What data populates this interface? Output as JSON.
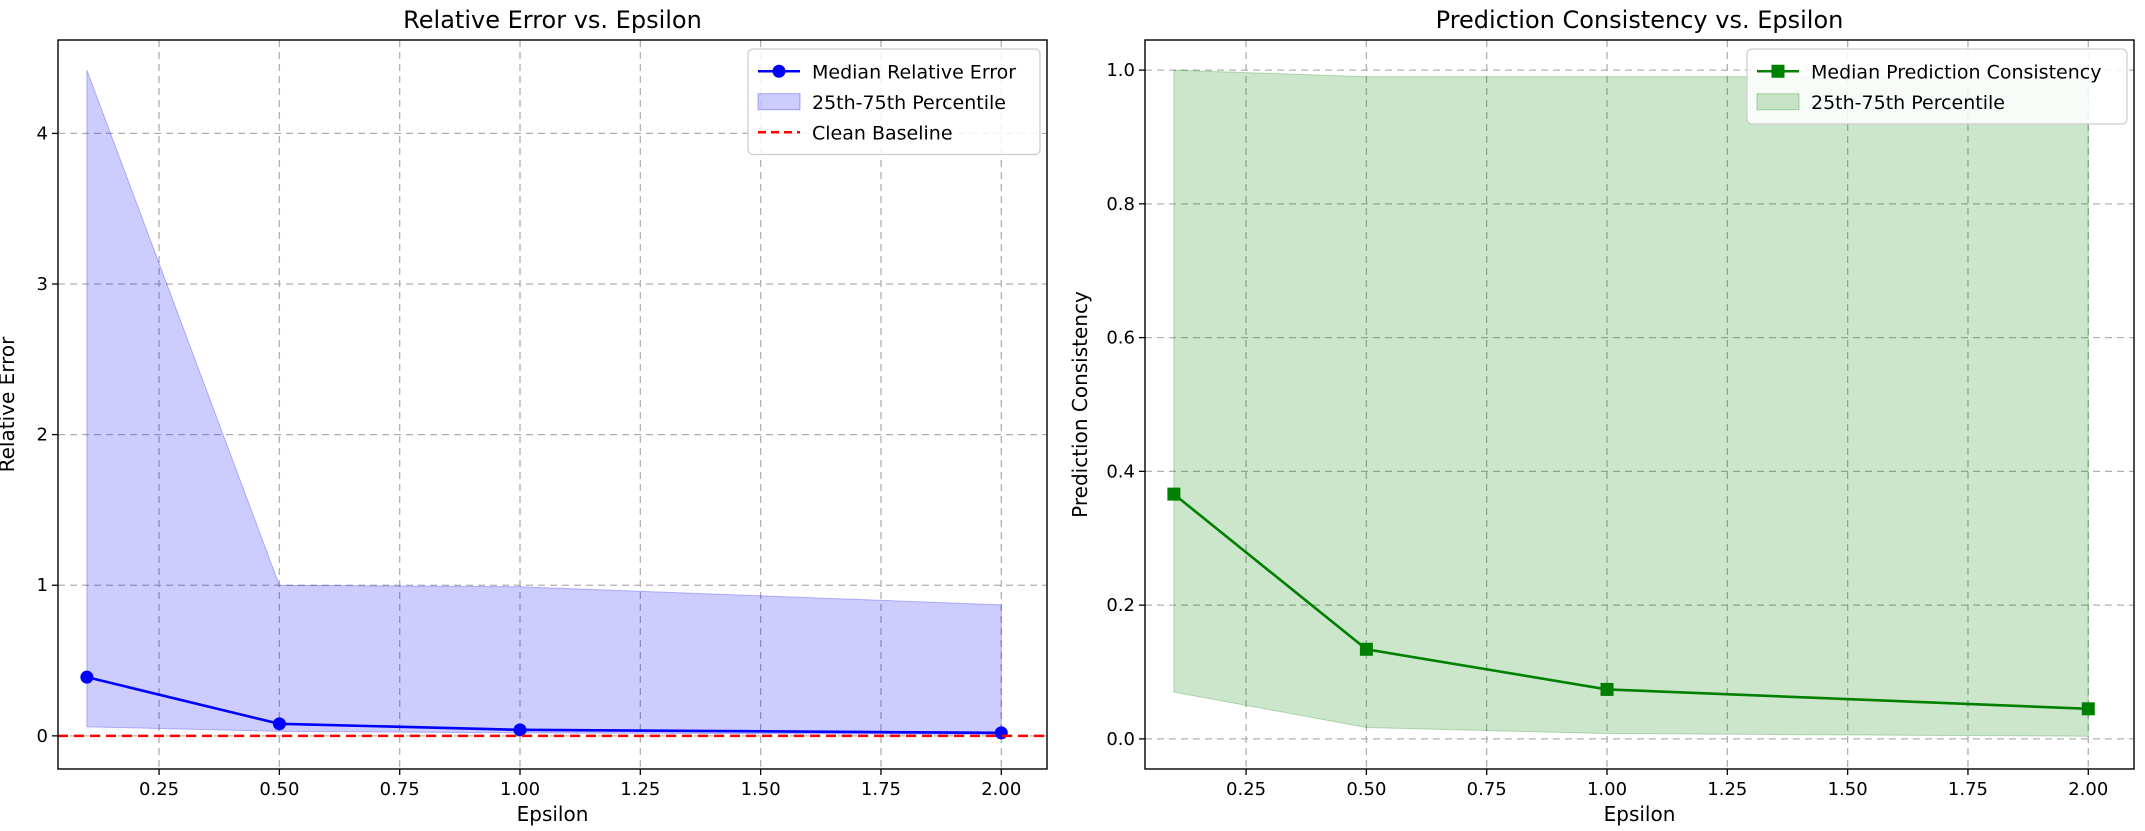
{
  "chart_data": [
    {
      "type": "line",
      "title": "Relative Error vs. Epsilon",
      "xlabel": "Epsilon",
      "ylabel": "Relative Error",
      "xlim": [
        0.04,
        2.095
      ],
      "ylim": [
        -0.22,
        4.62
      ],
      "xticks": [
        0.25,
        0.5,
        0.75,
        1.0,
        1.25,
        1.5,
        1.75,
        2.0
      ],
      "xtick_labels": [
        "0.25",
        "0.50",
        "0.75",
        "1.00",
        "1.25",
        "1.50",
        "1.75",
        "2.00"
      ],
      "yticks": [
        0,
        1,
        2,
        3,
        4
      ],
      "ytick_labels": [
        "0",
        "1",
        "2",
        "3",
        "4"
      ],
      "grid": true,
      "legend_position": "top-right",
      "x": [
        0.1,
        0.5,
        1.0,
        2.0
      ],
      "series": [
        {
          "name": "Median Relative Error",
          "kind": "line",
          "marker": "circle",
          "color": "#0000ff",
          "values": [
            0.39,
            0.08,
            0.04,
            0.02
          ]
        },
        {
          "name": "25th-75th Percentile",
          "kind": "band",
          "color": "#0000ff",
          "opacity": 0.2,
          "lower": [
            0.06,
            0.03,
            0.02,
            0.01
          ],
          "upper": [
            4.42,
            1.0,
            0.99,
            0.87
          ]
        },
        {
          "name": "Clean Baseline",
          "kind": "hline",
          "color": "#ff0000",
          "dash": true,
          "value": 0.0
        }
      ]
    },
    {
      "type": "line",
      "title": "Prediction Consistency vs. Epsilon",
      "xlabel": "Epsilon",
      "ylabel": "Prediction Consistency",
      "xlim": [
        0.04,
        2.095
      ],
      "ylim": [
        -0.045,
        1.045
      ],
      "xticks": [
        0.25,
        0.5,
        0.75,
        1.0,
        1.25,
        1.5,
        1.75,
        2.0
      ],
      "xtick_labels": [
        "0.25",
        "0.50",
        "0.75",
        "1.00",
        "1.25",
        "1.50",
        "1.75",
        "2.00"
      ],
      "yticks": [
        0.0,
        0.2,
        0.4,
        0.6,
        0.8,
        1.0
      ],
      "ytick_labels": [
        "0.0",
        "0.2",
        "0.4",
        "0.6",
        "0.8",
        "1.0"
      ],
      "grid": true,
      "legend_position": "top-right",
      "x": [
        0.1,
        0.5,
        1.0,
        2.0
      ],
      "series": [
        {
          "name": "Median Prediction Consistency",
          "kind": "line",
          "marker": "square",
          "color": "#008000",
          "values": [
            0.366,
            0.134,
            0.074,
            0.045
          ]
        },
        {
          "name": "25th-75th Percentile",
          "kind": "band",
          "color": "#008000",
          "opacity": 0.2,
          "lower": [
            0.07,
            0.017,
            0.008,
            0.004
          ],
          "upper": [
            1.0,
            0.99,
            0.99,
            0.99
          ]
        }
      ]
    }
  ]
}
